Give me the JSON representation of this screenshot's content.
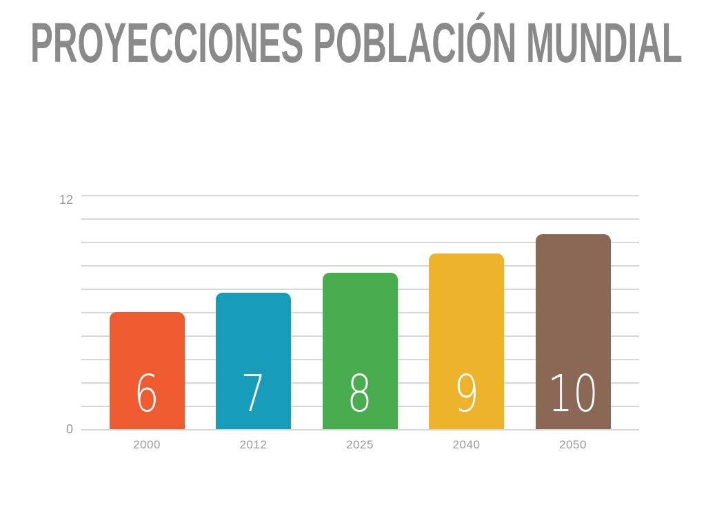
{
  "slide": {
    "title": "PROYECCIONES POBLACIÓN MUNDIAL"
  },
  "chart_data": {
    "type": "bar",
    "title": "PROYECCIONES POBLACIÓN MUNDIAL",
    "categories": [
      "2000",
      "2012",
      "2025",
      "2040",
      "2050"
    ],
    "values": [
      6,
      7,
      8,
      9,
      10
    ],
    "bar_labels": [
      "6",
      "7",
      "8",
      "9",
      "10"
    ],
    "bar_colors": [
      "#EF5B31",
      "#179DBA",
      "#49AC4E",
      "#ECB32B",
      "#8B6856"
    ],
    "ylim": [
      0,
      12
    ],
    "yticks_shown": [
      "12",
      "0"
    ],
    "grid": true,
    "gridline_count": 11,
    "legend": "none",
    "xlabel": "",
    "ylabel": "",
    "colors": {
      "title_text": "#8A8A8A",
      "axis_text": "#999999",
      "gridline": "#D6D6D6",
      "bar_value_text": "#FFFFFF",
      "background": "#FFFFFF"
    }
  }
}
